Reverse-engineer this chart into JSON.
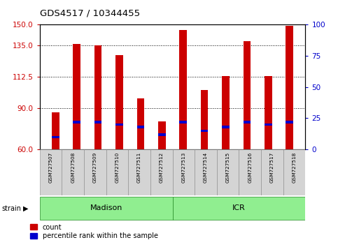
{
  "title": "GDS4517 / 10344455",
  "samples": [
    "GSM727507",
    "GSM727508",
    "GSM727509",
    "GSM727510",
    "GSM727511",
    "GSM727512",
    "GSM727513",
    "GSM727514",
    "GSM727515",
    "GSM727516",
    "GSM727517",
    "GSM727518"
  ],
  "counts": [
    87,
    136,
    135,
    128,
    97,
    80,
    146,
    103,
    113,
    138,
    113,
    149
  ],
  "percentile_ranks": [
    10,
    22,
    22,
    20,
    18,
    12,
    22,
    15,
    18,
    22,
    20,
    22
  ],
  "groups": [
    {
      "label": "Madison",
      "start": 0,
      "end": 6,
      "color": "#90ee90"
    },
    {
      "label": "ICR",
      "start": 6,
      "end": 12,
      "color": "#90ee90"
    }
  ],
  "bar_color": "#cc0000",
  "blue_color": "#0000cc",
  "bar_width": 0.35,
  "ylim_left": [
    60,
    150
  ],
  "yticks_left": [
    60,
    90,
    112.5,
    135,
    150
  ],
  "yticks_right": [
    0,
    25,
    50,
    75,
    100
  ],
  "ylim_right": [
    0,
    100
  ],
  "ylabel_left_color": "#cc0000",
  "ylabel_right_color": "#0000cc",
  "background_color": "#ffffff",
  "strain_label": "strain",
  "legend_count_label": "count",
  "legend_pct_label": "percentile rank within the sample"
}
